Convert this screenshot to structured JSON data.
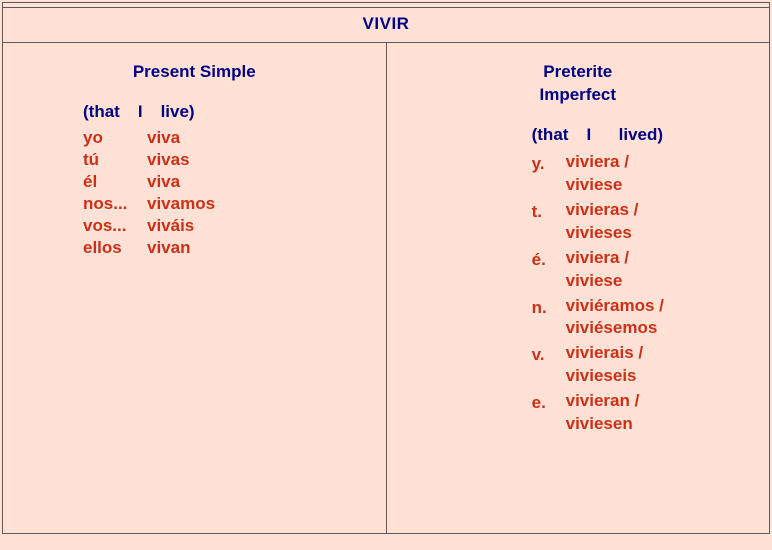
{
  "colors": {
    "background": "#ffe1d6",
    "border": "#5a5a5a",
    "heading": "#000080",
    "conjugation": "#cc3118"
  },
  "verb": "VIVIR",
  "left": {
    "title": "Present Simple",
    "gloss_open": "(that",
    "gloss_subj": "I",
    "gloss_verb": "live)",
    "rows": [
      {
        "p": "yo",
        "f": "viva"
      },
      {
        "p": "tú",
        "f": "vivas"
      },
      {
        "p": "él",
        "f": "viva"
      },
      {
        "p": "nos...",
        "f": "vivamos"
      },
      {
        "p": "vos...",
        "f": "viváis"
      },
      {
        "p": "ellos",
        "f": "vivan"
      }
    ]
  },
  "right": {
    "title_l1": "Preterite",
    "title_l2": "Imperfect",
    "gloss_open": "(that",
    "gloss_subj": "I",
    "gloss_verb": "lived)",
    "rows": [
      {
        "p": "y.",
        "f1": "viviera /",
        "f2": "viviese"
      },
      {
        "p": "t.",
        "f1": "vivieras /",
        "f2": "vivieses"
      },
      {
        "p": "é.",
        "f1": "viviera /",
        "f2": "viviese"
      },
      {
        "p": "n.",
        "f1": "viviéramos /",
        "f2": "viviésemos"
      },
      {
        "p": "v.",
        "f1": "vivierais /",
        "f2": "vivieseis"
      },
      {
        "p": "e.",
        "f1": "vivieran /",
        "f2": "viviesen"
      }
    ]
  }
}
